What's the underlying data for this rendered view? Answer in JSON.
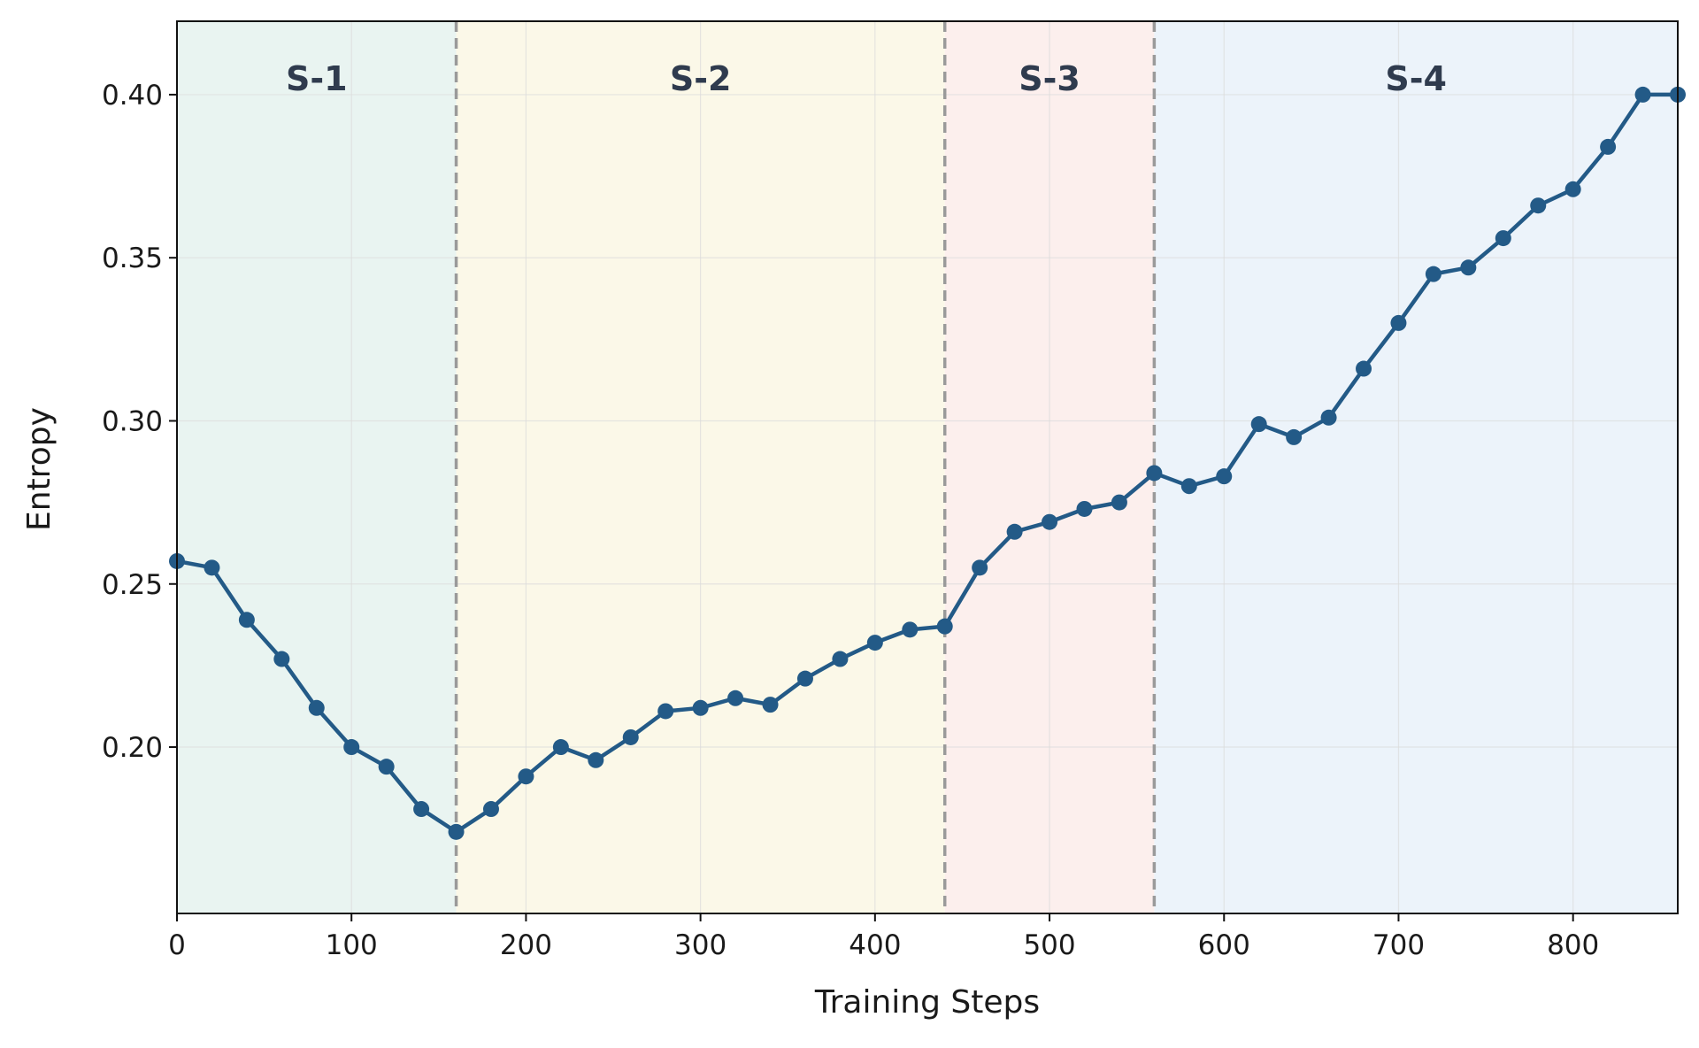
{
  "chart_data": {
    "type": "line",
    "title": "",
    "xlabel": "Training Steps",
    "ylabel": "Entropy",
    "xlim": [
      0,
      860
    ],
    "ylim": [
      0.149,
      0.4225
    ],
    "xticks": [
      0,
      100,
      200,
      300,
      400,
      500,
      600,
      700,
      800
    ],
    "yticks": [
      0.2,
      0.25,
      0.3,
      0.35,
      0.4
    ],
    "xtick_labels": [
      "0",
      "100",
      "200",
      "300",
      "400",
      "500",
      "600",
      "700",
      "800"
    ],
    "ytick_labels": [
      "0.20",
      "0.25",
      "0.30",
      "0.35",
      "0.40"
    ],
    "grid": true,
    "legend": "none",
    "line_color": "#235a87",
    "stages": [
      {
        "label": "S-1",
        "start": 0,
        "end": 160,
        "color": "#e9f4f1"
      },
      {
        "label": "S-2",
        "start": 160,
        "end": 440,
        "color": "#fbf8e8"
      },
      {
        "label": "S-3",
        "start": 440,
        "end": 560,
        "color": "#fcefed"
      },
      {
        "label": "S-4",
        "start": 560,
        "end": 860,
        "color": "#ecf3fa"
      }
    ],
    "stage_boundaries": [
      160,
      440,
      560
    ],
    "x": [
      0,
      20,
      40,
      60,
      80,
      100,
      120,
      140,
      160,
      180,
      200,
      220,
      240,
      260,
      280,
      300,
      320,
      340,
      360,
      380,
      400,
      420,
      440,
      460,
      480,
      500,
      520,
      540,
      560,
      580,
      600,
      620,
      640,
      660,
      680,
      700,
      720,
      740,
      760,
      780,
      800,
      820,
      840,
      860
    ],
    "series": [
      {
        "values": [
          0.257,
          0.255,
          0.239,
          0.227,
          0.212,
          0.2,
          0.194,
          0.181,
          0.174,
          0.181,
          0.191,
          0.2,
          0.196,
          0.203,
          0.211,
          0.212,
          0.215,
          0.213,
          0.221,
          0.227,
          0.232,
          0.236,
          0.237,
          0.255,
          0.266,
          0.269,
          0.273,
          0.275,
          0.284,
          0.28,
          0.283,
          0.299,
          0.295,
          0.301,
          0.316,
          0.33,
          0.345,
          0.347,
          0.356,
          0.366,
          0.371,
          0.384,
          0.4,
          0.4
        ]
      }
    ]
  }
}
